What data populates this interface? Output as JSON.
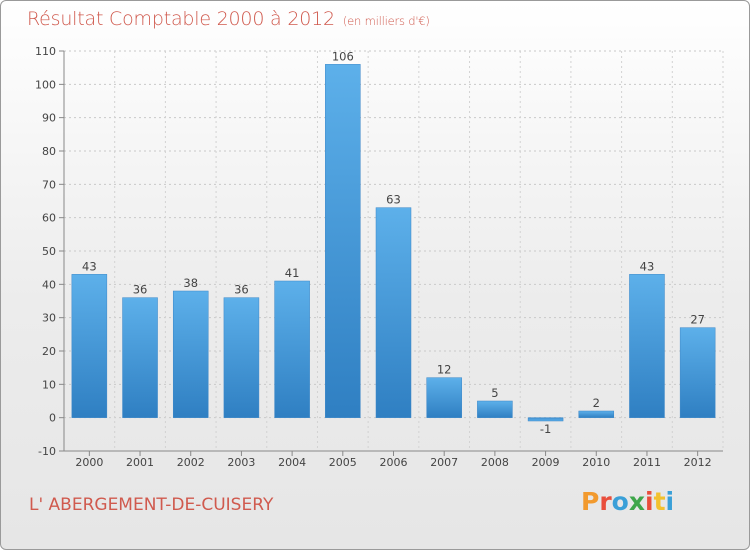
{
  "header": {
    "title": "Résultat Comptable 2000 à 2012",
    "subtitle": "(en milliers d'€)"
  },
  "footer": {
    "commune": "L' ABERGEMENT-DE-CUISERY",
    "logo": "Proxiti",
    "logo_colors": [
      "#f29a2e",
      "#e94e3c",
      "#3aa0d8",
      "#3fa64a",
      "#e94e3c",
      "#f2c12e",
      "#3aa0d8"
    ]
  },
  "chart_data": {
    "type": "bar",
    "title": "Résultat Comptable 2000 à 2012",
    "subtitle": "(en milliers d'€)",
    "xlabel": "",
    "ylabel": "",
    "categories": [
      "2000",
      "2001",
      "2002",
      "2003",
      "2004",
      "2005",
      "2006",
      "2007",
      "2008",
      "2009",
      "2010",
      "2011",
      "2012"
    ],
    "values": [
      43,
      36,
      38,
      36,
      41,
      106,
      63,
      12,
      5,
      -1,
      2,
      43,
      27
    ],
    "ylim": [
      -10,
      110
    ],
    "yticks": [
      -10,
      0,
      10,
      20,
      30,
      40,
      50,
      60,
      70,
      80,
      90,
      100,
      110
    ],
    "grid": true,
    "bar_color": "#4f9fdc"
  }
}
